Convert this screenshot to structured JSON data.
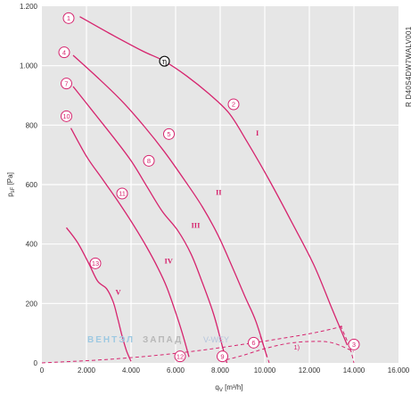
{
  "chart_data": {
    "type": "line",
    "title": "",
    "model_code": "R D40S4DW7WALV001",
    "xlabel": "q",
    "xlabel_sub": "V",
    "xlabel_unit": " [m³/h]",
    "ylabel": "p",
    "ylabel_sub": "sF",
    "ylabel_unit": " [Pa]",
    "xlim": [
      0,
      16000
    ],
    "ylim": [
      0,
      1200
    ],
    "x_ticks": [
      0,
      2000,
      4000,
      6000,
      8000,
      10000,
      12000,
      14000,
      16000
    ],
    "x_tick_labels": [
      "0",
      "2.000",
      "4.000",
      "6.000",
      "8.000",
      "10.000",
      "12.000",
      "14.000",
      "16.000"
    ],
    "y_ticks": [
      0,
      200,
      400,
      600,
      800,
      1000,
      1200
    ],
    "y_tick_labels": [
      "0",
      "200",
      "400",
      "600",
      "800",
      "1.000",
      "1.200"
    ],
    "grid": true,
    "series": [
      {
        "name": "I",
        "label_at": [
          9600,
          765
        ],
        "points": [
          [
            1700,
            1165
          ],
          [
            3000,
            1110
          ],
          [
            4500,
            1050
          ],
          [
            5500,
            1015
          ],
          [
            6500,
            965
          ],
          [
            7500,
            905
          ],
          [
            8400,
            840
          ],
          [
            9200,
            745
          ],
          [
            10200,
            615
          ],
          [
            11200,
            475
          ],
          [
            12200,
            330
          ],
          [
            13000,
            185
          ],
          [
            13700,
            60
          ]
        ]
      },
      {
        "name": "II",
        "label_at": [
          7800,
          565
        ],
        "points": [
          [
            1400,
            1035
          ],
          [
            2500,
            960
          ],
          [
            3600,
            880
          ],
          [
            4600,
            795
          ],
          [
            5500,
            710
          ],
          [
            6400,
            615
          ],
          [
            7200,
            525
          ],
          [
            7900,
            430
          ],
          [
            8500,
            330
          ],
          [
            9100,
            225
          ],
          [
            9600,
            140
          ],
          [
            10100,
            20
          ]
        ]
      },
      {
        "name": "III",
        "label_at": [
          6700,
          455
        ],
        "points": [
          [
            1400,
            930
          ],
          [
            2300,
            845
          ],
          [
            3200,
            760
          ],
          [
            4000,
            680
          ],
          [
            4700,
            595
          ],
          [
            5400,
            510
          ],
          [
            6100,
            445
          ],
          [
            6700,
            365
          ],
          [
            7200,
            270
          ],
          [
            7700,
            165
          ],
          [
            8100,
            55
          ],
          [
            8300,
            0
          ]
        ]
      },
      {
        "name": "IV",
        "label_at": [
          5500,
          335
        ],
        "points": [
          [
            1300,
            790
          ],
          [
            2000,
            695
          ],
          [
            2700,
            620
          ],
          [
            3400,
            545
          ],
          [
            4100,
            465
          ],
          [
            4700,
            390
          ],
          [
            5200,
            320
          ],
          [
            5600,
            255
          ],
          [
            6000,
            170
          ],
          [
            6300,
            100
          ],
          [
            6600,
            20
          ]
        ]
      },
      {
        "name": "V",
        "label_at": [
          3300,
          230
        ],
        "points": [
          [
            1100,
            455
          ],
          [
            1600,
            405
          ],
          [
            2100,
            335
          ],
          [
            2500,
            275
          ],
          [
            2900,
            250
          ],
          [
            3200,
            205
          ],
          [
            3400,
            150
          ],
          [
            3600,
            90
          ],
          [
            3800,
            40
          ],
          [
            4000,
            5
          ]
        ]
      }
    ],
    "efficiency_marker": {
      "label": "η",
      "at": [
        5500,
        1015
      ]
    },
    "dashed_curves": [
      {
        "points": [
          [
            0,
            0
          ],
          [
            3000,
            12
          ],
          [
            6000,
            32
          ],
          [
            9000,
            62
          ],
          [
            12000,
            98
          ],
          [
            13600,
            125
          ]
        ]
      },
      {
        "points": [
          [
            8000,
            5
          ],
          [
            9000,
            25
          ],
          [
            10000,
            48
          ],
          [
            11000,
            65
          ],
          [
            12000,
            72
          ],
          [
            13000,
            68
          ],
          [
            14000,
            38
          ]
        ]
      },
      {
        "points": [
          [
            9800,
            90
          ],
          [
            10200,
            0
          ]
        ]
      },
      {
        "points": [
          [
            13400,
            125
          ],
          [
            13800,
            55
          ],
          [
            14000,
            0
          ]
        ]
      }
    ],
    "dashed_label": {
      "text": "1)",
      "at": [
        11300,
        45
      ]
    },
    "operating_points": [
      {
        "label": "1",
        "at": [
          1200,
          1160
        ]
      },
      {
        "label": "2",
        "at": [
          8600,
          870
        ]
      },
      {
        "label": "3",
        "at": [
          14000,
          62
        ]
      },
      {
        "label": "4",
        "at": [
          1000,
          1045
        ]
      },
      {
        "label": "5",
        "at": [
          5700,
          770
        ]
      },
      {
        "label": "6",
        "at": [
          9500,
          68
        ]
      },
      {
        "label": "7",
        "at": [
          1100,
          940
        ]
      },
      {
        "label": "8",
        "at": [
          4800,
          680
        ]
      },
      {
        "label": "9",
        "at": [
          8100,
          22
        ]
      },
      {
        "label": "10",
        "at": [
          1100,
          830
        ]
      },
      {
        "label": "11",
        "at": [
          3600,
          570
        ]
      },
      {
        "label": "12",
        "at": [
          6200,
          22
        ]
      },
      {
        "label": "13",
        "at": [
          2400,
          335
        ]
      }
    ],
    "watermark": {
      "part1": "ВЕНТЭЛ",
      "part2": "ЗАПАД",
      "part3": "V-WEY"
    }
  }
}
